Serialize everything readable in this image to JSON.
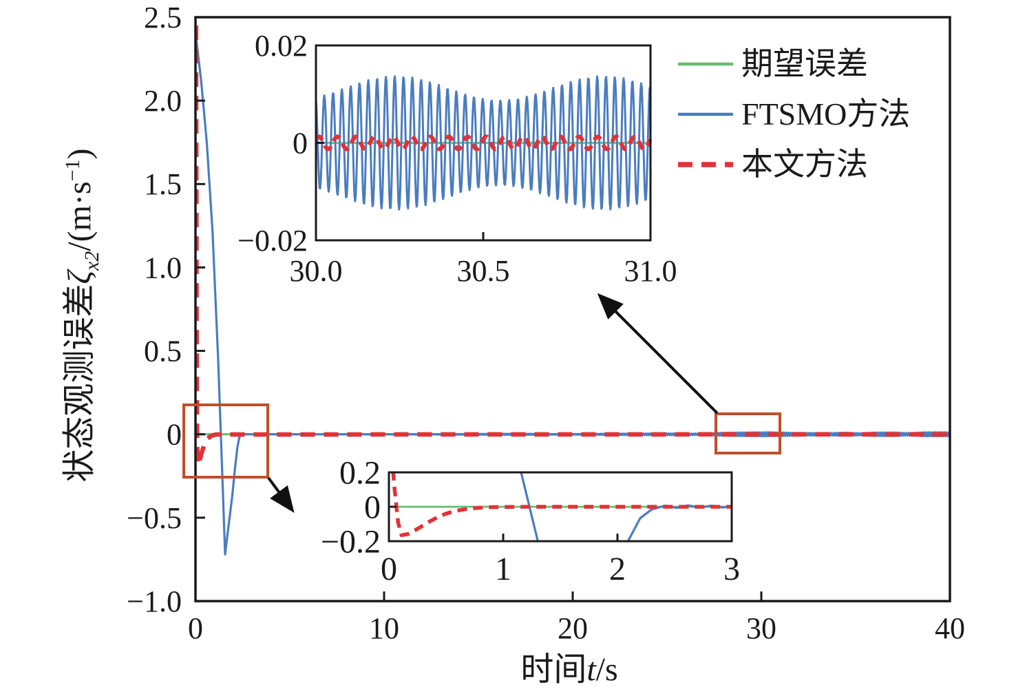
{
  "colors": {
    "expected_green": "#68bd70",
    "ftsmo_blue": "#4a7cc0",
    "proposed_red": "#e23237",
    "annotation_orange": "#c04f28",
    "axis_black": "#1a1a1a"
  },
  "legend": {
    "items": [
      {
        "label": "期望误差",
        "style": "solid",
        "color_key": "expected_green"
      },
      {
        "label": "FTSMO方法",
        "style": "solid",
        "color_key": "ftsmo_blue"
      },
      {
        "label": "本文方法",
        "style": "dashed",
        "color_key": "proposed_red"
      }
    ]
  },
  "axis_labels": {
    "x": {
      "prefix": "时间",
      "variable": "t",
      "suffix": "/s"
    },
    "y": {
      "prefix": "状态观测误差",
      "symbol": "ζ",
      "subscript": "x2",
      "mid": "/(m·s",
      "superscript": "−1",
      "close": ")"
    }
  },
  "chart_data": [
    {
      "id": "main",
      "type": "line",
      "title": "",
      "xlabel": "时间t/s",
      "ylabel": "状态观测误差ζx2/(m·s⁻¹)",
      "xlim": [
        0,
        40
      ],
      "ylim": [
        -1.0,
        2.5
      ],
      "grid": false,
      "legend_position": "upper right",
      "xticks": [
        {
          "v": 0,
          "l": "0"
        },
        {
          "v": 10,
          "l": "10"
        },
        {
          "v": 20,
          "l": "20"
        },
        {
          "v": 30,
          "l": "30"
        },
        {
          "v": 40,
          "l": "40"
        }
      ],
      "yticks": [
        {
          "v": 2.5,
          "l": "2.5"
        },
        {
          "v": 2.0,
          "l": "2.0"
        },
        {
          "v": 1.5,
          "l": "1.5"
        },
        {
          "v": 1.0,
          "l": "1.0"
        },
        {
          "v": 0.5,
          "l": "0.5"
        },
        {
          "v": 0,
          "l": "0"
        },
        {
          "v": -0.5,
          "l": "−0.5"
        },
        {
          "v": -1.0,
          "l": "−1.0"
        }
      ],
      "series": [
        {
          "name": "期望误差",
          "color_key": "expected_green",
          "width": 3.2,
          "points": [
            [
              0,
              0
            ],
            [
              40,
              0
            ]
          ]
        },
        {
          "name": "FTSMO方法",
          "color_key": "ftsmo_blue",
          "width": 3.2,
          "keypoints": [
            [
              0.03,
              2.38
            ],
            [
              0.3,
              2.12
            ],
            [
              0.6,
              1.75
            ],
            [
              0.9,
              1.22
            ],
            [
              1.2,
              0.45
            ],
            [
              1.45,
              -0.33
            ],
            [
              1.57,
              -0.72
            ],
            [
              1.72,
              -0.58
            ],
            [
              1.95,
              -0.37
            ],
            [
              2.1,
              -0.2
            ],
            [
              2.22,
              -0.08
            ],
            [
              2.32,
              -0.02
            ],
            [
              2.4,
              -0.005
            ]
          ],
          "band": {
            "from": 2.4,
            "to": 40,
            "step": 0.06,
            "amplitude_profile": [
              [
                2.4,
                0.0008
              ],
              [
                10,
                0.0008
              ],
              [
                12,
                0.0015
              ],
              [
                14,
                0.002
              ],
              [
                16,
                0.0032
              ],
              [
                17.5,
                0.0035
              ],
              [
                19,
                0.0018
              ],
              [
                20.5,
                0.0018
              ],
              [
                22,
                0.004
              ],
              [
                23.5,
                0.0045
              ],
              [
                24.5,
                0.005
              ],
              [
                26,
                0.0045
              ],
              [
                26.8,
                0.004
              ],
              [
                28,
                0.009
              ],
              [
                29.5,
                0.0115
              ],
              [
                30.5,
                0.012
              ],
              [
                31.5,
                0.009
              ],
              [
                32.5,
                0.0075
              ],
              [
                33.5,
                0.007
              ],
              [
                34.5,
                0.0095
              ],
              [
                35.2,
                0.006
              ],
              [
                36,
                0.01
              ],
              [
                37,
                0.011
              ],
              [
                37.8,
                0.007
              ],
              [
                38.6,
                0.0115
              ],
              [
                39.5,
                0.012
              ],
              [
                40,
                0.0115
              ]
            ]
          }
        },
        {
          "name": "本文方法",
          "color_key": "proposed_red",
          "width": 6.5,
          "dash": [
            21,
            13
          ],
          "keypoints": [
            [
              0.03,
              2.45
            ],
            [
              0.045,
              1.6
            ],
            [
              0.06,
              0.7
            ],
            [
              0.08,
              0.02
            ],
            [
              0.1,
              -0.12
            ],
            [
              0.13,
              -0.185
            ],
            [
              0.19,
              -0.168
            ],
            [
              0.28,
              -0.13
            ],
            [
              0.38,
              -0.092
            ],
            [
              0.5,
              -0.055
            ],
            [
              0.65,
              -0.025
            ],
            [
              0.85,
              -0.008
            ],
            [
              1.1,
              -0.001
            ],
            [
              40,
              0
            ]
          ]
        }
      ]
    },
    {
      "id": "inset_top",
      "type": "line",
      "title": "",
      "xlabel": "",
      "ylabel": "",
      "xlim": [
        30,
        31
      ],
      "ylim": [
        -0.02,
        0.02
      ],
      "grid": false,
      "xticks": [
        {
          "v": 30.0,
          "l": "30.0"
        },
        {
          "v": 30.5,
          "l": "30.5"
        },
        {
          "v": 31.0,
          "l": "31.0"
        }
      ],
      "yticks": [
        {
          "v": 0.02,
          "l": "0.02"
        },
        {
          "v": 0,
          "l": "0"
        },
        {
          "v": -0.02,
          "l": "−0.02"
        }
      ],
      "series": [
        {
          "name": "期望误差",
          "color_key": "expected_green",
          "width": 2.8,
          "points": [
            [
              30,
              0
            ],
            [
              31,
              0
            ]
          ]
        },
        {
          "name": "FTSMO方法",
          "color_key": "ftsmo_blue",
          "width": 3,
          "oscillation": {
            "frequency": 38,
            "phase": 1.9,
            "amp_mean": 0.0112,
            "amp_mod": 0.0025,
            "mod_center": 30.24,
            "mod_period": 0.62,
            "dt": 0.0018
          }
        },
        {
          "name": "本文方法",
          "color_key": "proposed_red",
          "width": 6,
          "dash": [
            13,
            9
          ],
          "oscillation": {
            "frequency": 18,
            "phase": 0.6,
            "amp_mean": 0.0013,
            "amp_mod": 0,
            "mod_center": 30,
            "mod_period": 1,
            "dt": 0.004
          }
        }
      ]
    },
    {
      "id": "inset_bottom",
      "type": "line",
      "title": "",
      "xlabel": "",
      "ylabel": "",
      "xlim": [
        0,
        3
      ],
      "ylim": [
        -0.2,
        0.2
      ],
      "grid": false,
      "xticks": [
        {
          "v": 0,
          "l": "0"
        },
        {
          "v": 1,
          "l": "1"
        },
        {
          "v": 2,
          "l": "2"
        },
        {
          "v": 3,
          "l": "3"
        }
      ],
      "yticks": [
        {
          "v": 0.2,
          "l": "0.2"
        },
        {
          "v": 0,
          "l": "0"
        },
        {
          "v": -0.2,
          "l": "−0.2"
        }
      ],
      "series": [
        {
          "name": "期望误差",
          "color_key": "expected_green",
          "width": 2.8,
          "points": [
            [
              0,
              0
            ],
            [
              3,
              0
            ]
          ]
        },
        {
          "name": "FTSMO方法",
          "color_key": "ftsmo_blue",
          "width": 3.2,
          "keypoints": [
            [
              1.12,
              0.3
            ],
            [
              1.23,
              0
            ],
            [
              1.34,
              -0.3
            ],
            [
              2.0,
              -0.3
            ],
            [
              2.1,
              -0.19
            ],
            [
              2.2,
              -0.065
            ],
            [
              2.3,
              -0.015
            ],
            [
              2.42,
              0.007
            ],
            [
              2.52,
              -0.006
            ],
            [
              2.62,
              0.008
            ],
            [
              2.72,
              -0.005
            ],
            [
              2.82,
              0.007
            ],
            [
              2.92,
              -0.004
            ],
            [
              3,
              0.004
            ]
          ]
        },
        {
          "name": "本文方法",
          "color_key": "proposed_red",
          "width": 5.5,
          "dash": [
            14,
            9
          ],
          "keypoints": [
            [
              0.025,
              0.3
            ],
            [
              0.05,
              0.1
            ],
            [
              0.08,
              -0.09
            ],
            [
              0.11,
              -0.165
            ],
            [
              0.17,
              -0.158
            ],
            [
              0.25,
              -0.128
            ],
            [
              0.35,
              -0.088
            ],
            [
              0.45,
              -0.052
            ],
            [
              0.56,
              -0.027
            ],
            [
              0.7,
              -0.01
            ],
            [
              0.9,
              -0.002
            ],
            [
              1.2,
              0
            ],
            [
              3,
              0
            ]
          ]
        }
      ]
    }
  ]
}
